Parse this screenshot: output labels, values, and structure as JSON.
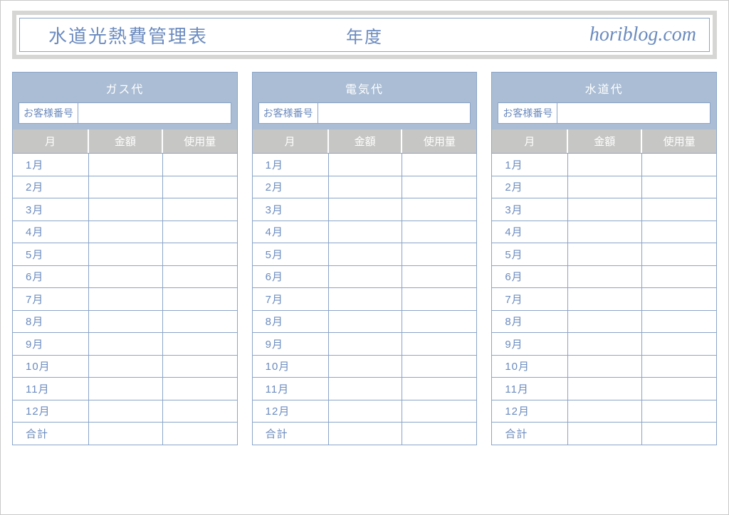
{
  "theme": {
    "accent": "#6b8bbf",
    "accent_border": "#8aa5c9",
    "panel_head_bg": "#aabdd4",
    "col_head_bg": "#c6c6c4",
    "outer_frame": "#d6d6d4",
    "white": "#ffffff"
  },
  "header": {
    "title": "水道光熱費管理表",
    "year_label": "年度",
    "brand": "horiblog.com"
  },
  "column_headers": {
    "month": "月",
    "amount": "金額",
    "usage": "使用量"
  },
  "customer_label": "お客様番号",
  "row_labels": [
    "1月",
    "2月",
    "3月",
    "4月",
    "5月",
    "6月",
    "7月",
    "8月",
    "9月",
    "10月",
    "11月",
    "12月",
    "合計"
  ],
  "panels": [
    {
      "title": "ガス代",
      "customer_no": "",
      "rows": [
        [
          "",
          ""
        ],
        [
          "",
          ""
        ],
        [
          "",
          ""
        ],
        [
          "",
          ""
        ],
        [
          "",
          ""
        ],
        [
          "",
          ""
        ],
        [
          "",
          ""
        ],
        [
          "",
          ""
        ],
        [
          "",
          ""
        ],
        [
          "",
          ""
        ],
        [
          "",
          ""
        ],
        [
          "",
          ""
        ],
        [
          "",
          ""
        ]
      ]
    },
    {
      "title": "電気代",
      "customer_no": "",
      "rows": [
        [
          "",
          ""
        ],
        [
          "",
          ""
        ],
        [
          "",
          ""
        ],
        [
          "",
          ""
        ],
        [
          "",
          ""
        ],
        [
          "",
          ""
        ],
        [
          "",
          ""
        ],
        [
          "",
          ""
        ],
        [
          "",
          ""
        ],
        [
          "",
          ""
        ],
        [
          "",
          ""
        ],
        [
          "",
          ""
        ],
        [
          "",
          ""
        ]
      ]
    },
    {
      "title": "水道代",
      "customer_no": "",
      "rows": [
        [
          "",
          ""
        ],
        [
          "",
          ""
        ],
        [
          "",
          ""
        ],
        [
          "",
          ""
        ],
        [
          "",
          ""
        ],
        [
          "",
          ""
        ],
        [
          "",
          ""
        ],
        [
          "",
          ""
        ],
        [
          "",
          ""
        ],
        [
          "",
          ""
        ],
        [
          "",
          ""
        ],
        [
          "",
          ""
        ],
        [
          "",
          ""
        ]
      ]
    }
  ]
}
